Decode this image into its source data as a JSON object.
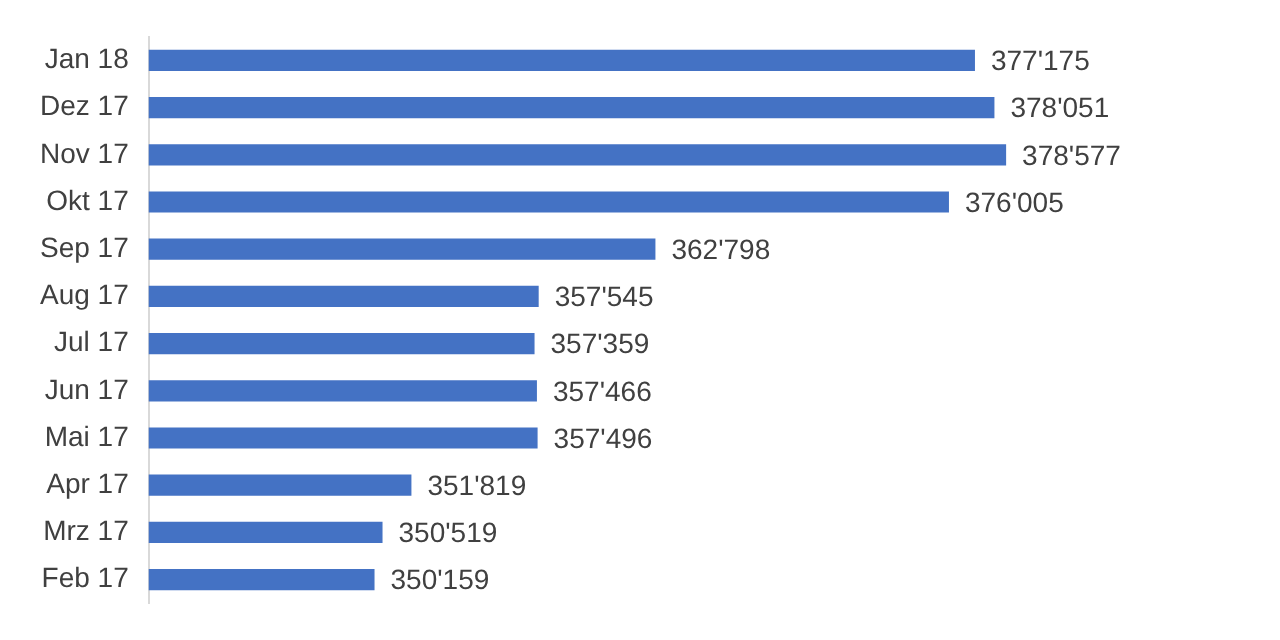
{
  "chart_data": {
    "type": "bar",
    "orientation": "horizontal",
    "categories": [
      "Jan 18",
      "Dez 17",
      "Nov 17",
      "Okt 17",
      "Sep 17",
      "Aug 17",
      "Jul 17",
      "Jun 17",
      "Mai 17",
      "Apr 17",
      "Mrz 17",
      "Feb 17"
    ],
    "values": [
      377175,
      378051,
      378577,
      376005,
      362798,
      357545,
      357359,
      357466,
      357496,
      351819,
      350519,
      350159
    ],
    "value_labels": [
      "377'175",
      "378'051",
      "378'577",
      "376'005",
      "362'798",
      "357'545",
      "357'359",
      "357'466",
      "357'496",
      "351'819",
      "350'519",
      "350'159"
    ],
    "color": "#4472c4",
    "tick_labels": "y",
    "grid": false,
    "legend": false
  }
}
